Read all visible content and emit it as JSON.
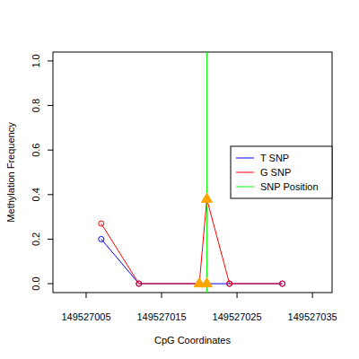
{
  "chart_data": {
    "type": "line",
    "x_label": "CpG Coordinates",
    "y_label": "Methylation Frequency",
    "x": [
      149527007,
      149527012,
      149527020,
      149527021,
      149527024,
      149527031
    ],
    "series": [
      {
        "name": "T SNP",
        "color": "#0000ff",
        "marker": "circle",
        "values": [
          0.2,
          0,
          0,
          0,
          0,
          0
        ]
      },
      {
        "name": "G SNP",
        "color": "#ff0000",
        "marker": "circle",
        "values": [
          0.27,
          0,
          0,
          0.38,
          0,
          0
        ]
      },
      {
        "type": "scatter",
        "marker": "triangle",
        "color": "#ffa500",
        "x": [
          149527020,
          149527021,
          149527021
        ],
        "values": [
          0,
          0,
          0.38
        ]
      }
    ],
    "snp_line": {
      "name": "SNP Position",
      "color": "#00ff00",
      "x": 149527021
    },
    "xlim": [
      149527000.6,
      149527037.6
    ],
    "xticks": [
      149527005,
      149527015,
      149527025,
      149527035
    ],
    "ylim": [
      -0.04,
      1.04
    ],
    "yticks": [
      {
        "value": 0,
        "label": "0.0"
      },
      0.2,
      0.4,
      0.6,
      0.8,
      {
        "value": 1,
        "label": "1.0"
      }
    ],
    "legend": "right",
    "grid": false
  }
}
